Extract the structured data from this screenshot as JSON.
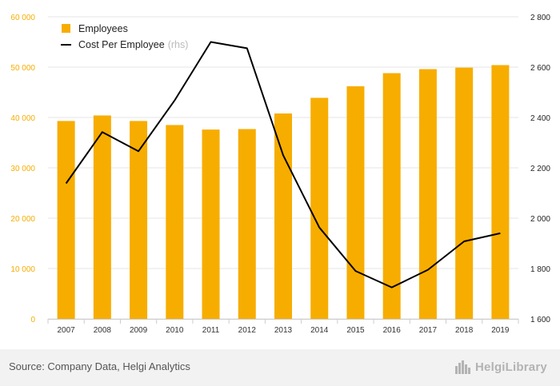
{
  "chart_data": {
    "type": "bar+line",
    "categories": [
      "2007",
      "2008",
      "2009",
      "2010",
      "2011",
      "2012",
      "2013",
      "2014",
      "2015",
      "2016",
      "2017",
      "2018",
      "2019"
    ],
    "series": [
      {
        "name": "Employees",
        "type": "bar",
        "axis": "left",
        "color": "#f7ad00",
        "values": [
          39300,
          40400,
          39300,
          38500,
          37600,
          37700,
          40800,
          43900,
          46200,
          48800,
          49600,
          49900,
          50400
        ]
      },
      {
        "name": "Cost Per Employee",
        "name_suffix": "(rhs)",
        "type": "line",
        "axis": "right",
        "color": "#000000",
        "values": [
          2138,
          2342,
          2266,
          2468,
          2700,
          2675,
          2250,
          1963,
          1790,
          1725,
          1795,
          1908,
          1940
        ]
      }
    ],
    "y_left": {
      "min": 0,
      "max": 60000,
      "ticks": [
        "0",
        "10 000",
        "20 000",
        "30 000",
        "40 000",
        "50 000",
        "60 000"
      ]
    },
    "y_right": {
      "min": 1600,
      "max": 2800,
      "ticks": [
        "1 600",
        "1 800",
        "2 000",
        "2 200",
        "2 400",
        "2 600",
        "2 800"
      ]
    },
    "grid": true,
    "legend_position": "top-left",
    "colors": {
      "bar": "#f7ad00",
      "line": "#000000",
      "left_axis_text": "#f7ad00",
      "grid": "#e6e6e6"
    }
  },
  "footer": {
    "source": "Source: Company Data, Helgi Analytics",
    "brand": "HelgiLibrary",
    "brand_icon": "city-skyline-icon"
  }
}
